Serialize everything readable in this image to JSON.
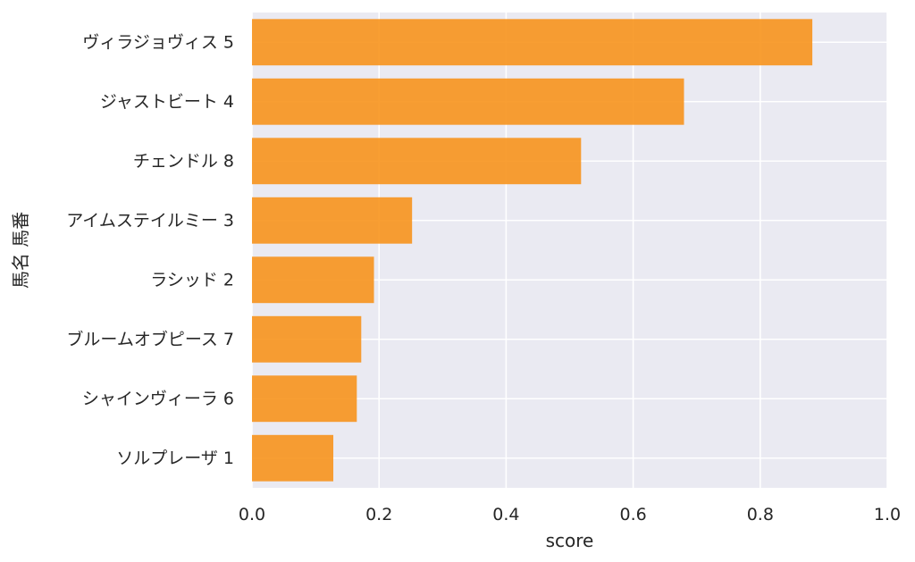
{
  "chart_data": {
    "type": "bar",
    "orientation": "horizontal",
    "xlabel": "score",
    "ylabel": "馬名 馬番",
    "xlim": [
      0.0,
      1.0
    ],
    "xticks": [
      "0.0",
      "0.2",
      "0.4",
      "0.6",
      "0.8",
      "1.0"
    ],
    "grid": true,
    "categories": [
      "ヴィラジョヴィス 5",
      "ジャストビート 4",
      "チェンドル 8",
      "アイムステイルミー 3",
      "ラシッド 2",
      "ブルームオブピース 7",
      "シャインヴィーラ 6",
      "ソルプレーザ 1"
    ],
    "values": [
      0.882,
      0.68,
      0.518,
      0.252,
      0.192,
      0.172,
      0.165,
      0.128
    ],
    "colors": {
      "bar": "#f7941d",
      "plot_background": "#eaeaf2",
      "grid": "#ffffff",
      "text": "#262626"
    }
  }
}
